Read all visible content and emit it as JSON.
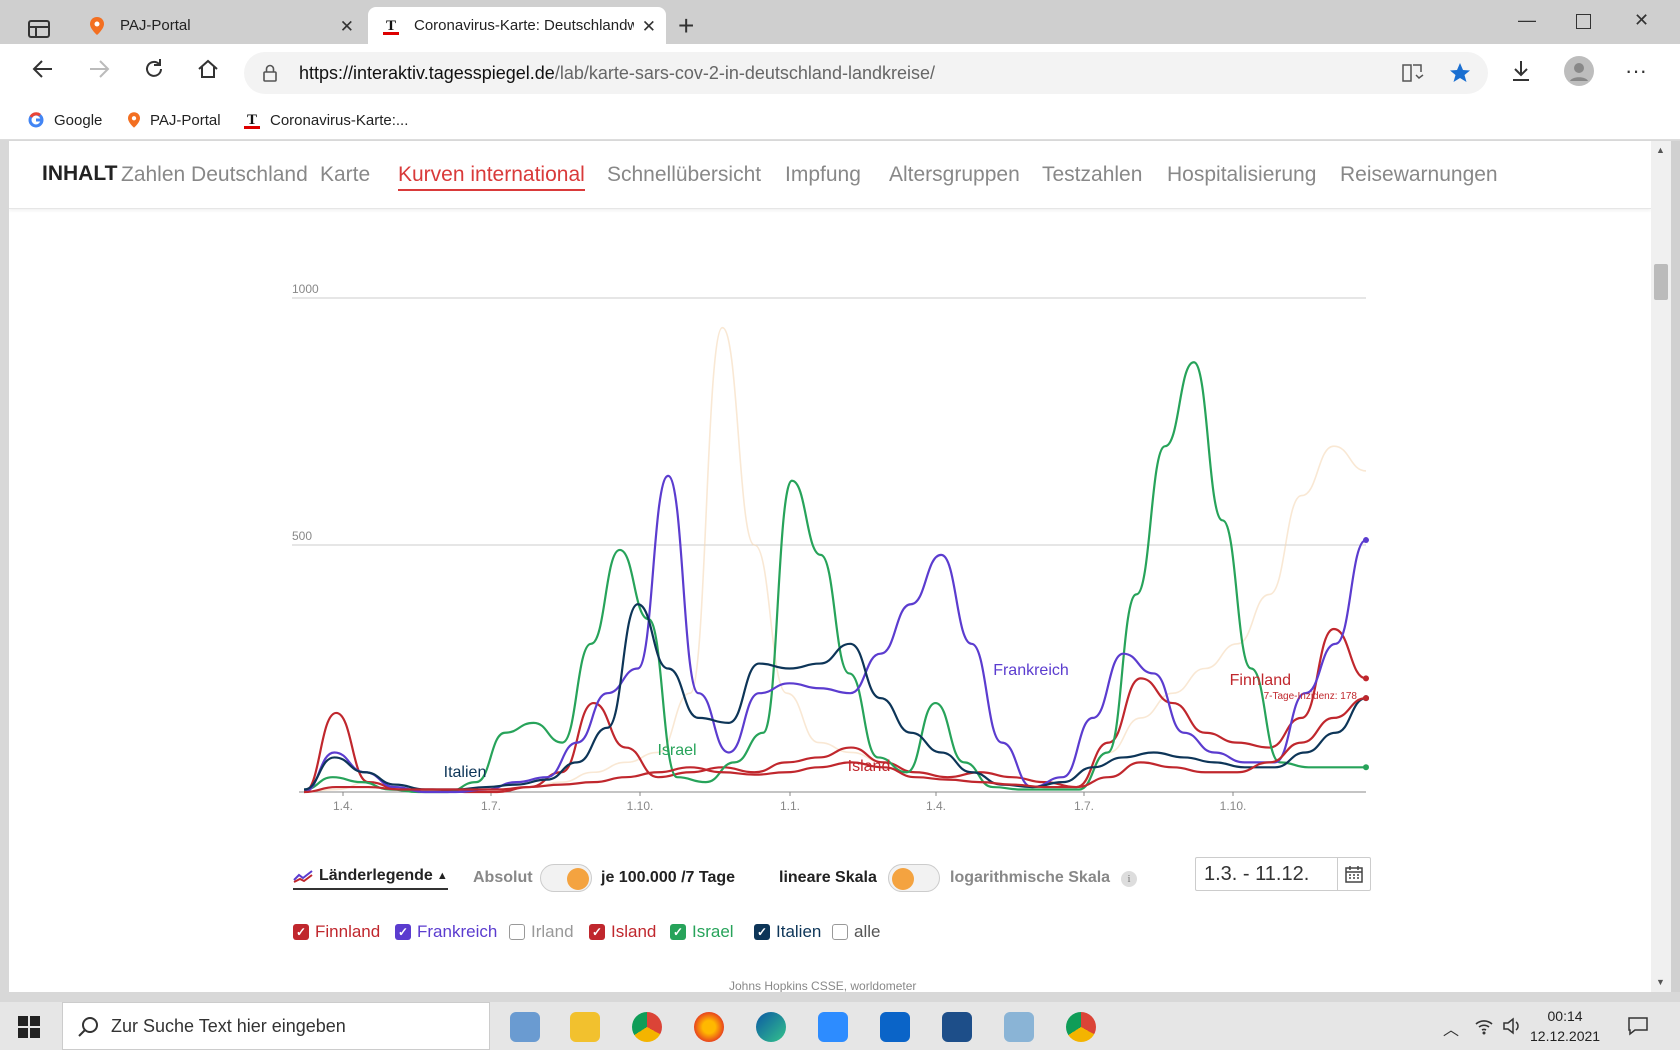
{
  "browser": {
    "tabs": [
      {
        "title": "PAJ-Portal",
        "icon": "location-pin-icon"
      },
      {
        "title": "Coronavirus-Karte: Deutschlandw",
        "icon": "tagesspiegel-t-icon",
        "active": true
      }
    ],
    "url_host": "https://interaktiv.tagesspiegel.de",
    "url_path": "/lab/karte-sars-cov-2-in-deutschland-landkreise/",
    "bookmarks": [
      {
        "label": "Google",
        "icon": "google-g-icon"
      },
      {
        "label": "PAJ-Portal",
        "icon": "location-pin-icon"
      },
      {
        "label": "Coronavirus-Karte:...",
        "icon": "tagesspiegel-t-icon"
      }
    ]
  },
  "sitenav": {
    "inhalt": "INHALT",
    "links": [
      "Zahlen Deutschland",
      "Karte",
      "Kurven international",
      "Schnellübersicht",
      "Impfung",
      "Altersgruppen",
      "Testzahlen",
      "Hospitalisierung",
      "Reisewarnungen"
    ],
    "active": "Kurven international"
  },
  "chart_data": {
    "type": "line",
    "ylim": [
      0,
      1000
    ],
    "yticks": [
      "1000",
      "500"
    ],
    "x_tick_labels": [
      "1.4.",
      "1.7.",
      "1.10.",
      "1.1.",
      "1.4.",
      "1.7.",
      "1.10."
    ],
    "annotation": "7-Tage-Inzidenz: 178",
    "labels_on_chart": [
      "Italien",
      "Israel",
      "Island",
      "Frankreich",
      "Finnland"
    ],
    "colors": {
      "Finnland": "#c0272d",
      "Frankreich": "#5b3ccf",
      "Irland": "#f5d8b8",
      "Island": "#c0272d",
      "Israel": "#27a35a",
      "Italien": "#0d3558"
    },
    "series": [
      {
        "name": "Israel",
        "values": [
          5,
          30,
          20,
          5,
          0,
          0,
          20,
          120,
          140,
          100,
          300,
          490,
          350,
          30,
          20,
          60,
          120,
          630,
          480,
          240,
          70,
          40,
          180,
          60,
          10,
          5,
          5,
          5,
          80,
          400,
          700,
          870,
          550,
          250,
          60,
          50,
          50,
          50
        ]
      },
      {
        "name": "Frankreich",
        "values": [
          0,
          80,
          40,
          10,
          0,
          0,
          5,
          20,
          30,
          100,
          200,
          250,
          640,
          200,
          80,
          200,
          220,
          210,
          200,
          280,
          380,
          480,
          300,
          100,
          10,
          30,
          150,
          280,
          240,
          120,
          80,
          60,
          60,
          200,
          300,
          510
        ]
      },
      {
        "name": "Italien",
        "values": [
          5,
          70,
          40,
          15,
          5,
          5,
          10,
          15,
          25,
          60,
          130,
          380,
          250,
          150,
          140,
          260,
          250,
          260,
          300,
          190,
          120,
          80,
          40,
          15,
          10,
          20,
          50,
          70,
          80,
          70,
          60,
          50,
          50,
          80,
          120,
          190
        ]
      },
      {
        "name": "Irland",
        "values": [
          0,
          5,
          20,
          5,
          0,
          0,
          0,
          10,
          20,
          40,
          60,
          80,
          200,
          940,
          500,
          200,
          100,
          80,
          60,
          40,
          30,
          40,
          30,
          20,
          10,
          80,
          150,
          200,
          250,
          300,
          400,
          600,
          700,
          650
        ]
      },
      {
        "name": "Island",
        "values": [
          0,
          160,
          20,
          5,
          5,
          0,
          0,
          10,
          40,
          180,
          90,
          30,
          40,
          50,
          40,
          60,
          70,
          90,
          60,
          40,
          30,
          40,
          30,
          20,
          10,
          100,
          230,
          180,
          120,
          100,
          90,
          150,
          330,
          230
        ]
      },
      {
        "name": "Finnland",
        "values": [
          0,
          10,
          10,
          5,
          5,
          5,
          5,
          10,
          15,
          20,
          30,
          40,
          50,
          40,
          35,
          40,
          50,
          60,
          50,
          30,
          25,
          20,
          15,
          10,
          10,
          30,
          60,
          50,
          40,
          40,
          60,
          100,
          150,
          190
        ]
      }
    ]
  },
  "controls": {
    "legend_toggle": "Länderlegende",
    "absolut": "Absolut",
    "per100k": "je 100.000 /7 Tage",
    "linear": "lineare Skala",
    "log": "logarithmische Skala",
    "info_icon": "info-icon",
    "date_range": "1.3. - 11.12."
  },
  "checkboxes": [
    {
      "label": "Finnland",
      "checked": true,
      "color": "#c0272d"
    },
    {
      "label": "Frankreich",
      "checked": true,
      "color": "#5b3ccf"
    },
    {
      "label": "Irland",
      "checked": false,
      "color": "#999999"
    },
    {
      "label": "Island",
      "checked": true,
      "color": "#c0272d"
    },
    {
      "label": "Israel",
      "checked": true,
      "color": "#27a35a"
    },
    {
      "label": "Italien",
      "checked": true,
      "color": "#0d3558"
    },
    {
      "label": "alle",
      "checked": false,
      "color": "#555555"
    }
  ],
  "source": "Johns Hopkins CSSE, worldometer",
  "taskbar": {
    "search_placeholder": "Zur Suche Text hier eingeben",
    "time": "00:14",
    "date": "12.12.2021"
  }
}
